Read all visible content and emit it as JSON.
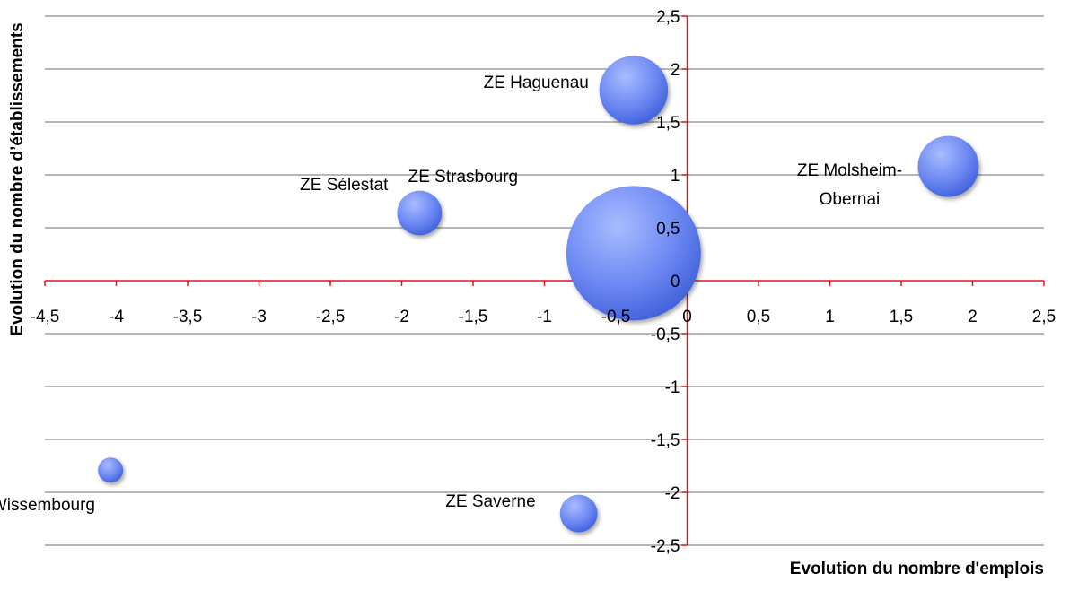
{
  "chart_data": {
    "type": "bubble",
    "x_title": "Evolution du nombre d'emplois",
    "y_title": "Evolution du nombre d’établissements",
    "labels": [
      "ZE Haguenau",
      "ZE Strasbourg",
      "ZE Sélestat",
      "ZE Molsheim-Obernai",
      "ZE Wissembourg",
      "ZE Saverne"
    ],
    "x": [
      -0.375,
      -0.375,
      -1.875,
      1.83,
      -4.04,
      -0.76
    ],
    "values": [
      1.8,
      0.26,
      0.64,
      1.08,
      -1.79,
      -2.2
    ],
    "sizes": [
      26,
      100,
      11,
      20.5,
      3.5,
      7.8
    ],
    "color": "#5b7cf0",
    "axis_color": "#e8141a",
    "grid": true,
    "xlim": [
      -4.5,
      2.5
    ],
    "ylim": [
      -2.5,
      2.5
    ],
    "xticks": [
      {
        "value": -4.5,
        "label": "-4,5"
      },
      -4,
      {
        "value": -3.5,
        "label": "-3,5"
      },
      -3,
      {
        "value": -2.5,
        "label": "-2,5"
      },
      -2,
      {
        "value": -1.5,
        "label": "-1,5"
      },
      -1,
      {
        "value": -0.5,
        "label": "-0,5"
      },
      0,
      {
        "value": 0.5,
        "label": "0,5"
      },
      1,
      {
        "value": 1.5,
        "label": "1,5"
      },
      2,
      {
        "value": 2.5,
        "label": "2,5"
      }
    ],
    "yticks": [
      {
        "value": -2.5,
        "label": "-2,5"
      },
      -2,
      {
        "value": -1.5,
        "label": "-1,5"
      },
      -1,
      {
        "value": -0.5,
        "label": "-0,5"
      },
      0,
      {
        "value": 0.5,
        "label": "0,5"
      },
      1,
      {
        "value": 1.5,
        "label": "1,5"
      },
      2,
      {
        "value": 2.5,
        "label": "2,5"
      }
    ]
  }
}
